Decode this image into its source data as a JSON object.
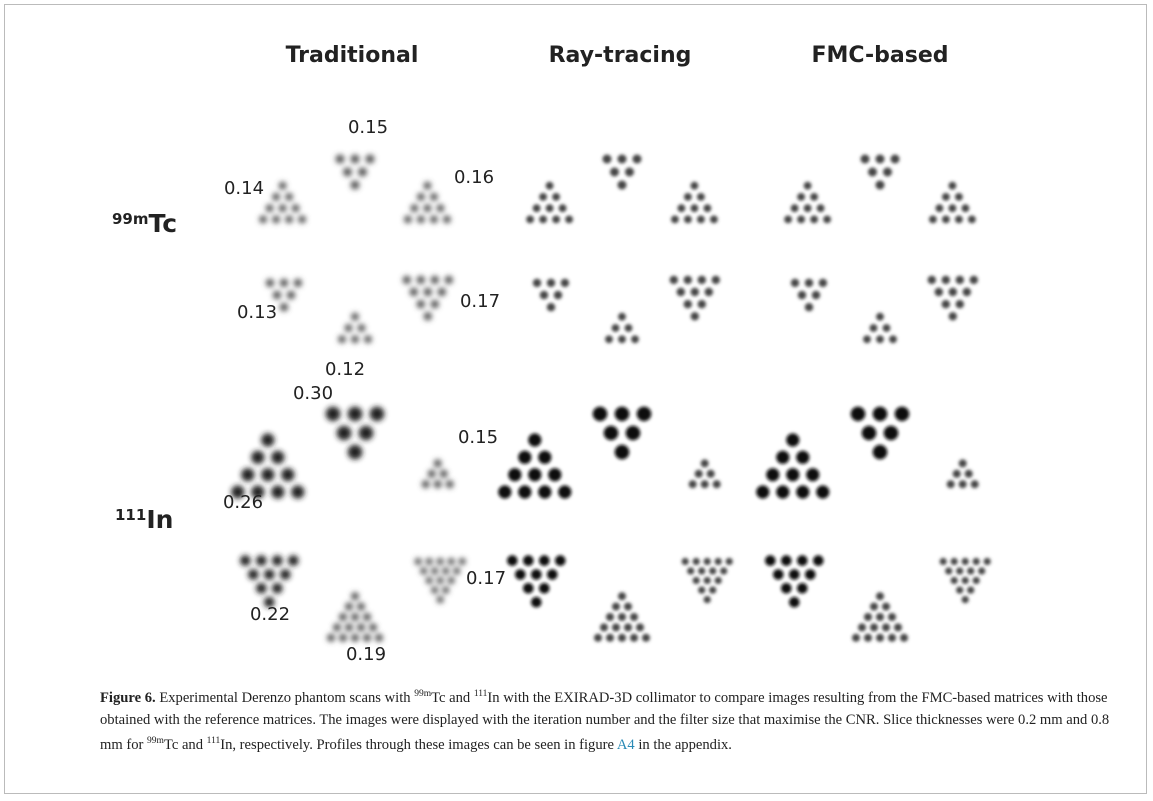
{
  "figure": {
    "columns": [
      "Traditional",
      "Ray-tracing",
      "FMC-based"
    ],
    "rows": [
      {
        "sup": "99m",
        "label": "Tc"
      },
      {
        "sup": "111",
        "label": "In"
      }
    ],
    "labels": [
      [
        "0.15",
        "0.16",
        "0.17",
        "0.12",
        "0.13",
        "0.14"
      ],
      [
        "0.30",
        "0.15",
        "0.17",
        "0.19",
        "0.22",
        "0.26"
      ]
    ],
    "caption": {
      "label": "Figure 6.",
      "parts": [
        " Experimental Derenzo phantom scans with ",
        "99m",
        "Tc and ",
        "111",
        "In with the EXIRAD-3D collimator to compare images resulting from the FMC-based matrices with those obtained with the reference matrices. The images were displayed with the iteration number and the filter size that maximise the CNR. Slice thicknesses were 0.2 mm and 0.8 mm for ",
        "99m",
        "Tc and ",
        "111",
        "In, respectively. Profiles through these images can be seen in figure ",
        "A4",
        " in the appendix."
      ]
    }
  }
}
